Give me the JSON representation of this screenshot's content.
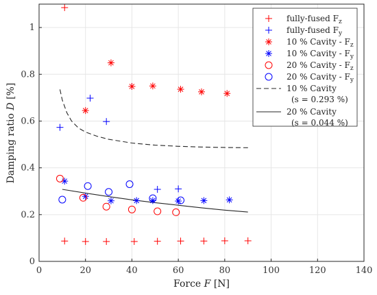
{
  "chart_data": {
    "type": "scatter",
    "xlabel": "Force F [N]",
    "ylabel": "Damping ratio D [%]",
    "xlim": [
      0,
      140
    ],
    "ylim": [
      0,
      1.1
    ],
    "x_ticks": [
      "0",
      "20",
      "40",
      "60",
      "80",
      "100",
      "120",
      "140"
    ],
    "y_ticks": [
      "0",
      "0.2",
      "0.4",
      "0.6",
      "0.8",
      "1"
    ],
    "grid": true,
    "legend_position": "top-right",
    "series": [
      {
        "name": "fully-fused F_z",
        "legend_label": "fully-fused F",
        "legend_sub": "z",
        "marker": "plus",
        "color": "#ff0000",
        "points": [
          [
            11,
            1.085
          ],
          [
            11,
            0.087
          ],
          [
            20,
            0.085
          ],
          [
            29,
            0.085
          ],
          [
            41,
            0.085
          ],
          [
            51,
            0.086
          ],
          [
            61,
            0.087
          ],
          [
            71,
            0.087
          ],
          [
            80,
            0.088
          ],
          [
            90,
            0.088
          ]
        ]
      },
      {
        "name": "fully-fused F_y",
        "legend_label": "fully-fused F",
        "legend_sub": "y",
        "marker": "plus",
        "color": "#0000ff",
        "points": [
          [
            9,
            0.573
          ],
          [
            22,
            0.698
          ],
          [
            29,
            0.598
          ],
          [
            40,
            0.748
          ],
          [
            51,
            0.308
          ],
          [
            60,
            0.31
          ]
        ]
      },
      {
        "name": "10 % Cavity - F_z",
        "legend_label": "10 % Cavity - F",
        "legend_sub": "z",
        "marker": "asterisk",
        "color": "#ff0000",
        "points": [
          [
            20,
            0.645
          ],
          [
            31,
            0.849
          ],
          [
            40,
            0.748
          ],
          [
            49,
            0.75
          ],
          [
            61,
            0.736
          ],
          [
            70,
            0.725
          ],
          [
            81,
            0.718
          ]
        ]
      },
      {
        "name": "10 % Cavity - F_y",
        "legend_label": "10 % Cavity - F",
        "legend_sub": "y",
        "marker": "asterisk",
        "color": "#0000ff",
        "points": [
          [
            11,
            0.343
          ],
          [
            20,
            0.278
          ],
          [
            31,
            0.259
          ],
          [
            42,
            0.26
          ],
          [
            49,
            0.26
          ],
          [
            60,
            0.258
          ],
          [
            71,
            0.26
          ],
          [
            82,
            0.263
          ]
        ]
      },
      {
        "name": "20 % Cavity - F_z",
        "legend_label": "20 % Cavity - F",
        "legend_sub": "z",
        "marker": "circle",
        "color": "#ff0000",
        "points": [
          [
            9,
            0.354
          ],
          [
            19,
            0.272
          ],
          [
            29,
            0.234
          ],
          [
            40,
            0.222
          ],
          [
            51,
            0.214
          ],
          [
            59,
            0.21
          ]
        ]
      },
      {
        "name": "20 % Cavity - F_y",
        "legend_label": "20 % Cavity - F",
        "legend_sub": "y",
        "marker": "circle",
        "color": "#0000ff",
        "points": [
          [
            10,
            0.264
          ],
          [
            21,
            0.322
          ],
          [
            30,
            0.297
          ],
          [
            39,
            0.33
          ],
          [
            49,
            0.27
          ],
          [
            61,
            0.261
          ]
        ]
      },
      {
        "name": "10 % Cavity (s = 0.293 %)",
        "legend_label": "10 % Cavity",
        "legend_label2": "(s = 0.293 %)",
        "line_style": "dashed",
        "color": "#262626",
        "points": [
          [
            9,
            0.735
          ],
          [
            10,
            0.69
          ],
          [
            12,
            0.635
          ],
          [
            14,
            0.6
          ],
          [
            17,
            0.57
          ],
          [
            20,
            0.553
          ],
          [
            25,
            0.535
          ],
          [
            30,
            0.522
          ],
          [
            40,
            0.506
          ],
          [
            50,
            0.497
          ],
          [
            60,
            0.492
          ],
          [
            70,
            0.489
          ],
          [
            80,
            0.487
          ],
          [
            90,
            0.486
          ]
        ]
      },
      {
        "name": "20 % Cavity (s = 0.044 %)",
        "legend_label": "20 % Cavity",
        "legend_label2": "(s = 0.044 %)",
        "line_style": "solid",
        "color": "#262626",
        "points": [
          [
            10,
            0.308
          ],
          [
            20,
            0.292
          ],
          [
            30,
            0.277
          ],
          [
            40,
            0.263
          ],
          [
            50,
            0.251
          ],
          [
            60,
            0.24
          ],
          [
            70,
            0.229
          ],
          [
            80,
            0.219
          ],
          [
            90,
            0.211
          ]
        ]
      }
    ]
  }
}
